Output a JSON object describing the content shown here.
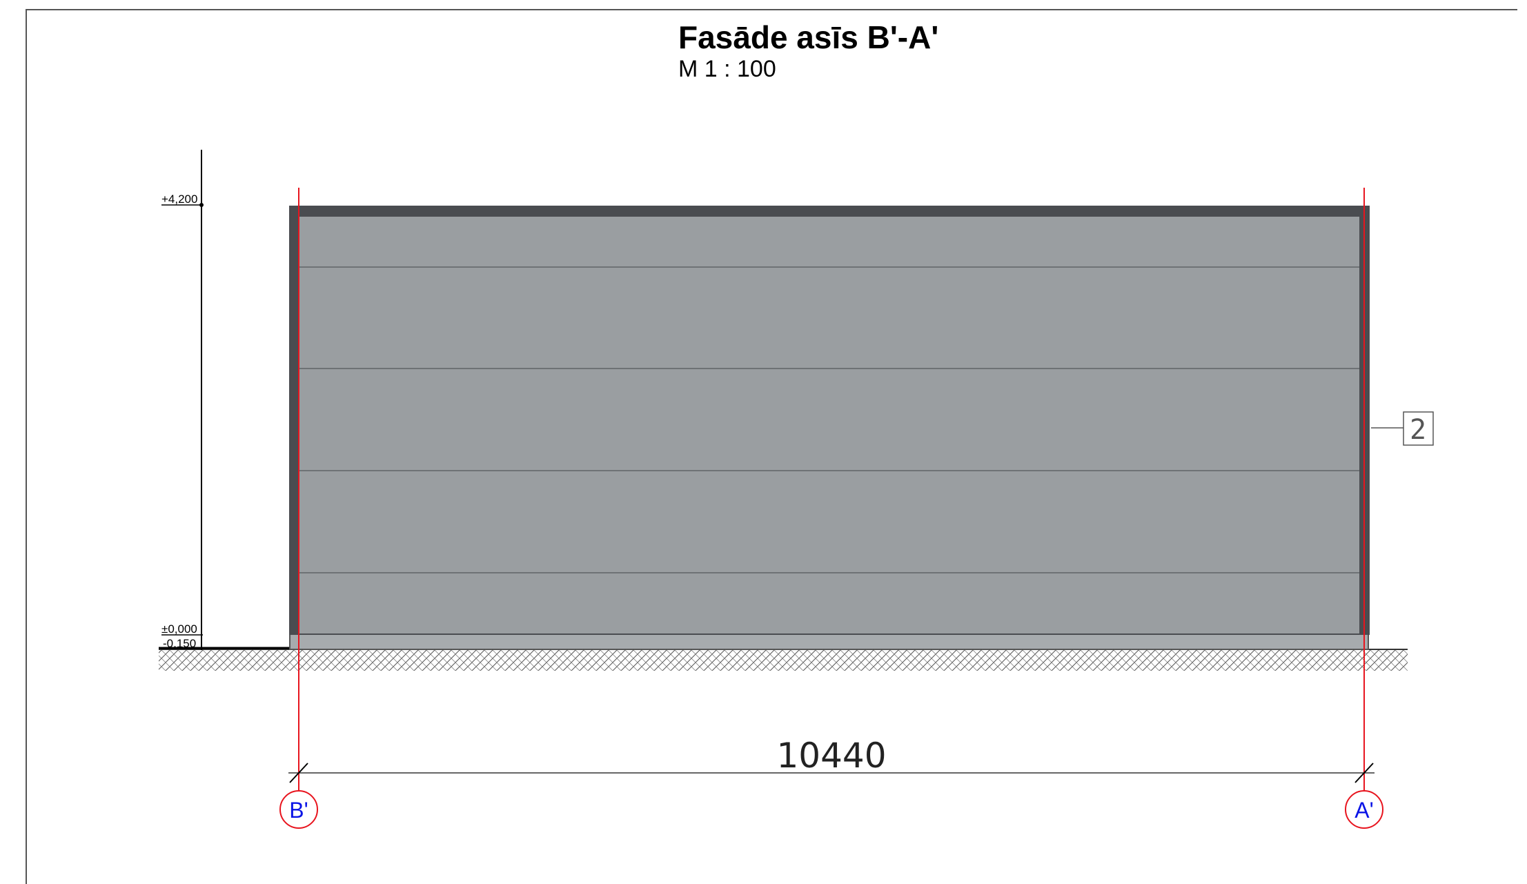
{
  "title": "Fasāde asīs B'-A'",
  "scale": "M  1 : 100",
  "elevations": [
    {
      "label": "+4,200"
    },
    {
      "label": "±0,000"
    },
    {
      "label": "-0,150"
    }
  ],
  "dimension": {
    "label": "10440"
  },
  "axes": [
    {
      "label": "B'"
    },
    {
      "label": "A'"
    }
  ],
  "material_marker": {
    "label": "2"
  },
  "colors": {
    "frame": "#4a4c50",
    "panel": "#9a9ea1",
    "panel_seam": "#6e7275",
    "axis_line": "#e8141e",
    "axis_label": "#0a14e6"
  }
}
